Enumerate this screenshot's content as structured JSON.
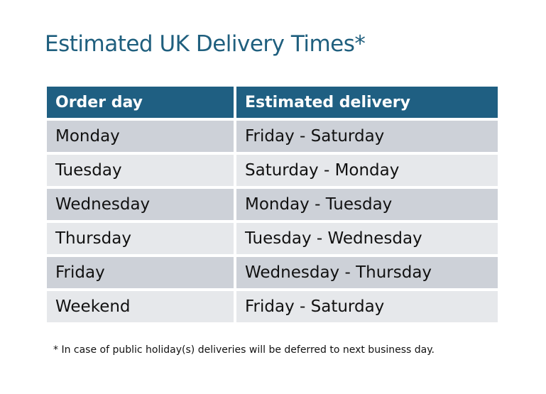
{
  "title": "Estimated UK Delivery Times*",
  "table": {
    "headers": [
      "Order day",
      "Estimated delivery"
    ],
    "rows": [
      [
        "Monday",
        "Friday - Saturday"
      ],
      [
        "Tuesday",
        "Saturday - Monday"
      ],
      [
        "Wednesday",
        "Monday - Tuesday"
      ],
      [
        "Thursday",
        "Tuesday - Wednesday"
      ],
      [
        "Friday",
        "Wednesday - Thursday"
      ],
      [
        "Weekend",
        "Friday - Saturday"
      ]
    ]
  },
  "footnote": "* In case of public holiday(s) deliveries will be deferred to next business day.",
  "colors": {
    "header": "#1f5f82",
    "row_dark": "#cdd1d8",
    "row_light": "#e6e8eb",
    "title": "#1f5f7e"
  }
}
